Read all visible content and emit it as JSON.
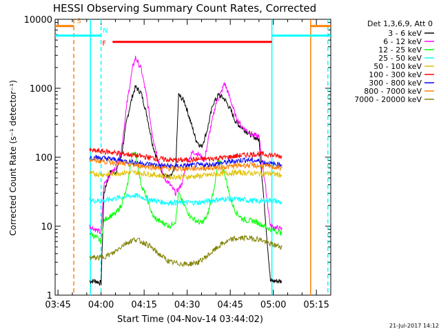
{
  "chart_data": {
    "type": "line",
    "title": "HESSI Observing Summary Count Rates, Corrected",
    "xlabel": "Start Time (04-Nov-14 03:44:02)",
    "ylabel": "Corrected Count Rate (s⁻¹ detector⁻¹)",
    "yscale": "log",
    "ylim": [
      1,
      10000
    ],
    "xlim_minutes": [
      0,
      96
    ],
    "x_ticks": [
      {
        "m": 1,
        "label": "03:45"
      },
      {
        "m": 16,
        "label": "04:00"
      },
      {
        "m": 31,
        "label": "04:15"
      },
      {
        "m": 46,
        "label": "04:30"
      },
      {
        "m": 61,
        "label": "04:45"
      },
      {
        "m": 76,
        "label": "05:00"
      },
      {
        "m": 91,
        "label": "05:15"
      }
    ],
    "y_ticks": [
      {
        "v": 1,
        "label": "1"
      },
      {
        "v": 10,
        "label": "10"
      },
      {
        "v": 100,
        "label": "100"
      },
      {
        "v": 1000,
        "label": "1000"
      },
      {
        "v": 10000,
        "label": "10000"
      }
    ],
    "legend_header": "Det 1,3,6,9, Att 0",
    "legend_position": "right",
    "series": [
      {
        "name": "3 - 6 keV",
        "color": "#000000",
        "points": [
          [
            12,
            1.6
          ],
          [
            14,
            1.6
          ],
          [
            16,
            1.5
          ],
          [
            17,
            30
          ],
          [
            19,
            60
          ],
          [
            21,
            60
          ],
          [
            23,
            100
          ],
          [
            25,
            350
          ],
          [
            27,
            800
          ],
          [
            28,
            1050
          ],
          [
            30,
            850
          ],
          [
            32,
            400
          ],
          [
            34,
            150
          ],
          [
            36,
            80
          ],
          [
            38,
            55
          ],
          [
            40,
            50
          ],
          [
            42,
            70
          ],
          [
            43,
            800
          ],
          [
            45,
            650
          ],
          [
            47,
            350
          ],
          [
            49,
            180
          ],
          [
            51,
            140
          ],
          [
            53,
            250
          ],
          [
            55,
            600
          ],
          [
            57,
            800
          ],
          [
            59,
            700
          ],
          [
            61,
            500
          ],
          [
            63,
            320
          ],
          [
            65,
            270
          ],
          [
            67,
            230
          ],
          [
            69,
            200
          ],
          [
            71,
            180
          ],
          [
            75,
            1.6
          ],
          [
            79,
            1.6
          ]
        ]
      },
      {
        "name": "6 - 12 keV",
        "color": "#ff00ff",
        "points": [
          [
            12,
            10
          ],
          [
            14,
            9
          ],
          [
            16,
            8
          ],
          [
            17,
            40
          ],
          [
            19,
            55
          ],
          [
            21,
            70
          ],
          [
            23,
            120
          ],
          [
            25,
            600
          ],
          [
            27,
            2000
          ],
          [
            28,
            2800
          ],
          [
            30,
            1900
          ],
          [
            32,
            700
          ],
          [
            34,
            200
          ],
          [
            36,
            90
          ],
          [
            38,
            50
          ],
          [
            40,
            40
          ],
          [
            42,
            30
          ],
          [
            44,
            40
          ],
          [
            46,
            85
          ],
          [
            48,
            120
          ],
          [
            50,
            110
          ],
          [
            52,
            90
          ],
          [
            54,
            250
          ],
          [
            56,
            600
          ],
          [
            58,
            900
          ],
          [
            59,
            1200
          ],
          [
            61,
            700
          ],
          [
            63,
            380
          ],
          [
            65,
            280
          ],
          [
            67,
            240
          ],
          [
            69,
            210
          ],
          [
            71,
            200
          ],
          [
            75,
            10
          ],
          [
            79,
            9
          ]
        ]
      },
      {
        "name": "12 - 25 keV",
        "color": "#00ff00",
        "points": [
          [
            12,
            8
          ],
          [
            14,
            7
          ],
          [
            16,
            6
          ],
          [
            17,
            12
          ],
          [
            19,
            14
          ],
          [
            21,
            15
          ],
          [
            23,
            20
          ],
          [
            25,
            35
          ],
          [
            27,
            120
          ],
          [
            28,
            110
          ],
          [
            30,
            40
          ],
          [
            32,
            25
          ],
          [
            34,
            14
          ],
          [
            36,
            12
          ],
          [
            38,
            11
          ],
          [
            40,
            10
          ],
          [
            42,
            12
          ],
          [
            43,
            30
          ],
          [
            45,
            20
          ],
          [
            47,
            14
          ],
          [
            49,
            12
          ],
          [
            51,
            11
          ],
          [
            53,
            14
          ],
          [
            55,
            30
          ],
          [
            57,
            90
          ],
          [
            59,
            60
          ],
          [
            61,
            25
          ],
          [
            63,
            16
          ],
          [
            65,
            13
          ],
          [
            67,
            12
          ],
          [
            69,
            12
          ],
          [
            71,
            11
          ],
          [
            75,
            9
          ],
          [
            79,
            8
          ]
        ]
      },
      {
        "name": "25 - 50 keV",
        "color": "#00ffff",
        "points": [
          [
            12,
            24
          ],
          [
            16,
            23
          ],
          [
            20,
            25
          ],
          [
            25,
            27
          ],
          [
            28,
            28
          ],
          [
            32,
            25
          ],
          [
            38,
            22
          ],
          [
            44,
            22
          ],
          [
            50,
            22
          ],
          [
            56,
            24
          ],
          [
            60,
            25
          ],
          [
            66,
            24
          ],
          [
            71,
            23
          ],
          [
            75,
            24
          ],
          [
            79,
            22
          ]
        ]
      },
      {
        "name": "50 - 100 keV",
        "color": "#e0c000",
        "points": [
          [
            12,
            58
          ],
          [
            18,
            56
          ],
          [
            24,
            60
          ],
          [
            28,
            60
          ],
          [
            34,
            56
          ],
          [
            40,
            52
          ],
          [
            46,
            52
          ],
          [
            52,
            54
          ],
          [
            58,
            58
          ],
          [
            64,
            60
          ],
          [
            71,
            58
          ],
          [
            75,
            58
          ],
          [
            79,
            55
          ]
        ]
      },
      {
        "name": "100 - 300 keV",
        "color": "#ff0000",
        "points": [
          [
            12,
            125
          ],
          [
            18,
            120
          ],
          [
            24,
            112
          ],
          [
            30,
            103
          ],
          [
            36,
            95
          ],
          [
            42,
            90
          ],
          [
            48,
            92
          ],
          [
            54,
            95
          ],
          [
            60,
            100
          ],
          [
            66,
            108
          ],
          [
            71,
            112
          ],
          [
            75,
            108
          ],
          [
            79,
            102
          ]
        ]
      },
      {
        "name": "300 - 800 keV",
        "color": "#0000ff",
        "points": [
          [
            12,
            100
          ],
          [
            18,
            96
          ],
          [
            24,
            88
          ],
          [
            30,
            82
          ],
          [
            36,
            76
          ],
          [
            42,
            74
          ],
          [
            48,
            76
          ],
          [
            54,
            78
          ],
          [
            60,
            85
          ],
          [
            66,
            92
          ],
          [
            71,
            88
          ],
          [
            75,
            80
          ],
          [
            79,
            78
          ]
        ]
      },
      {
        "name": "800 - 7000 keV",
        "color": "#ff8000",
        "points": [
          [
            12,
            92
          ],
          [
            18,
            86
          ],
          [
            24,
            80
          ],
          [
            30,
            75
          ],
          [
            36,
            70
          ],
          [
            42,
            68
          ],
          [
            48,
            69
          ],
          [
            54,
            70
          ],
          [
            60,
            73
          ],
          [
            66,
            77
          ],
          [
            71,
            75
          ],
          [
            75,
            73
          ],
          [
            79,
            70
          ]
        ]
      },
      {
        "name": "7000 - 20000 keV",
        "color": "#808000",
        "points": [
          [
            12,
            3.5
          ],
          [
            16,
            3.5
          ],
          [
            20,
            4
          ],
          [
            24,
            5.5
          ],
          [
            28,
            6.5
          ],
          [
            32,
            5.5
          ],
          [
            36,
            4
          ],
          [
            40,
            3
          ],
          [
            46,
            2.8
          ],
          [
            50,
            3
          ],
          [
            54,
            4
          ],
          [
            58,
            5.5
          ],
          [
            62,
            6.5
          ],
          [
            66,
            6.8
          ],
          [
            71,
            6.5
          ],
          [
            75,
            5.5
          ],
          [
            79,
            5
          ]
        ]
      }
    ],
    "state_bars": [
      {
        "label": "S",
        "color": "#ff8000",
        "value": 8000,
        "segments": [
          [
            0,
            6.5
          ],
          [
            89,
            96
          ]
        ]
      },
      {
        "label": "N",
        "color": "#00ffff",
        "value": 5800,
        "segments": [
          [
            0,
            16
          ],
          [
            75.5,
            96
          ]
        ]
      },
      {
        "label": "F",
        "color": "#ff0000",
        "value": 4700,
        "segments": [
          [
            20,
            75.5
          ]
        ]
      }
    ],
    "vlines": [
      {
        "m": 6.5,
        "color": "#ff8000",
        "dashed": true
      },
      {
        "m": 16,
        "color": "#00ffff",
        "dashed": true
      },
      {
        "m": 89,
        "color": "#ff8000",
        "dashed": false
      },
      {
        "m": 95,
        "color": "#00ffff",
        "dashed": true
      },
      {
        "m": 12.3,
        "color": "#00ffff",
        "dashed": false
      },
      {
        "m": 75.5,
        "color": "#00ffff",
        "dashed": false
      }
    ],
    "footer": "21-Jul-2017 14:12"
  }
}
